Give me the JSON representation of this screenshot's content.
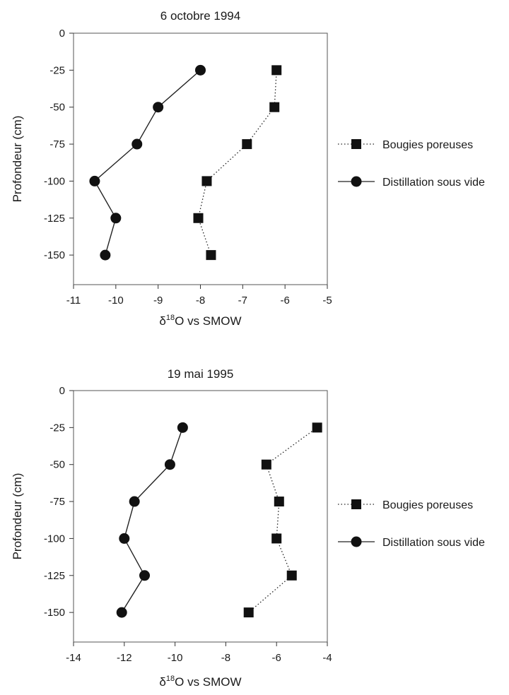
{
  "chart_data": [
    {
      "type": "scatter",
      "title": "6 octobre 1994",
      "xlabel": {
        "symbol": "δ",
        "sup": "18",
        "rest": "O vs SMOW"
      },
      "ylabel": "Profondeur (cm)",
      "xlim": [
        -11,
        -5
      ],
      "ylim": [
        -170,
        0
      ],
      "xticks": [
        -11,
        -10,
        -9,
        -8,
        -7,
        -6,
        -5
      ],
      "yticks": [
        0,
        -25,
        -50,
        -75,
        -100,
        -125,
        -150
      ],
      "legend_position": "right",
      "series": [
        {
          "name": "Bougies poreuses",
          "marker": "square",
          "line": "dotted",
          "points": [
            [
              -6.2,
              -25
            ],
            [
              -6.25,
              -50
            ],
            [
              -6.9,
              -75
            ],
            [
              -7.85,
              -100
            ],
            [
              -8.05,
              -125
            ],
            [
              -7.75,
              -150
            ]
          ]
        },
        {
          "name": "Distillation sous vide",
          "marker": "circle",
          "line": "solid",
          "points": [
            [
              -8.0,
              -25
            ],
            [
              -9.0,
              -50
            ],
            [
              -9.5,
              -75
            ],
            [
              -10.5,
              -100
            ],
            [
              -10.0,
              -125
            ],
            [
              -10.25,
              -150
            ]
          ]
        }
      ]
    },
    {
      "type": "scatter",
      "title": "19 mai 1995",
      "xlabel": {
        "symbol": "δ",
        "sup": "18",
        "rest": "O vs SMOW"
      },
      "ylabel": "Profondeur (cm)",
      "xlim": [
        -14,
        -4
      ],
      "ylim": [
        -170,
        0
      ],
      "xticks": [
        -14,
        -12,
        -10,
        -8,
        -6,
        -4
      ],
      "yticks": [
        0,
        -25,
        -50,
        -75,
        -100,
        -125,
        -150
      ],
      "legend_position": "right",
      "series": [
        {
          "name": "Bougies poreuses",
          "marker": "square",
          "line": "dotted",
          "points": [
            [
              -4.4,
              -25
            ],
            [
              -6.4,
              -50
            ],
            [
              -5.9,
              -75
            ],
            [
              -6.0,
              -100
            ],
            [
              -5.4,
              -125
            ],
            [
              -7.1,
              -150
            ]
          ]
        },
        {
          "name": "Distillation sous vide",
          "marker": "circle",
          "line": "solid",
          "points": [
            [
              -9.7,
              -25
            ],
            [
              -10.2,
              -50
            ],
            [
              -11.6,
              -75
            ],
            [
              -12.0,
              -100
            ],
            [
              -11.2,
              -125
            ],
            [
              -12.1,
              -150
            ]
          ]
        }
      ]
    }
  ]
}
